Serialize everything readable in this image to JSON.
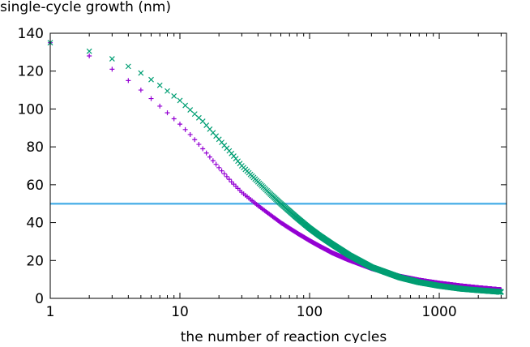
{
  "chart_data": {
    "type": "scatter",
    "title": "",
    "ylabel": "single-cycle growth (nm)",
    "xlabel": "the number of reaction cycles",
    "xscale": "log",
    "xlim": [
      1,
      3300
    ],
    "ylim": [
      0,
      140
    ],
    "x_ticks": [
      {
        "value": 1,
        "label": "1"
      },
      {
        "value": 10,
        "label": "10"
      },
      {
        "value": 100,
        "label": "100"
      },
      {
        "value": 1000,
        "label": "1000"
      }
    ],
    "y_ticks": [
      {
        "value": 0,
        "label": "0"
      },
      {
        "value": 20,
        "label": "20"
      },
      {
        "value": 40,
        "label": "40"
      },
      {
        "value": 60,
        "label": "60"
      },
      {
        "value": 80,
        "label": "80"
      },
      {
        "value": 100,
        "label": "100"
      },
      {
        "value": 120,
        "label": "120"
      },
      {
        "value": 140,
        "label": "140"
      }
    ],
    "grid": false,
    "legend": "none",
    "reference_line": {
      "y": 50,
      "color": "#56b4e9"
    },
    "series": [
      {
        "name": "series-purple",
        "marker": "plus",
        "color": "#9400d3",
        "x": [
          1,
          2,
          3,
          4,
          5,
          6,
          7,
          8,
          10,
          12,
          15,
          20,
          25,
          30,
          40,
          50,
          60,
          70,
          80,
          100,
          120,
          150,
          200,
          300,
          500,
          700,
          1000,
          1500,
          2000,
          3000
        ],
        "y": [
          135,
          128,
          121,
          115,
          110,
          105.5,
          101.5,
          98,
          92,
          86.5,
          79,
          69,
          61.5,
          56,
          49,
          44,
          40,
          37,
          34.5,
          30.5,
          27.5,
          24,
          20.3,
          15.8,
          11.6,
          9.6,
          8,
          6.5,
          5.6,
          4.5
        ]
      },
      {
        "name": "series-green",
        "marker": "cross",
        "color": "#009e73",
        "x": [
          1,
          2,
          3,
          4,
          5,
          6,
          7,
          8,
          10,
          12,
          15,
          20,
          25,
          30,
          40,
          50,
          60,
          70,
          80,
          100,
          120,
          150,
          200,
          300,
          500,
          700,
          1000,
          1500,
          2000,
          3000
        ],
        "y": [
          135,
          130.5,
          126.5,
          122.5,
          119,
          115.5,
          112.5,
          109.5,
          104.5,
          99.5,
          93.5,
          84,
          76.5,
          70,
          61.5,
          55,
          50,
          46,
          42.5,
          37,
          33,
          28.5,
          23,
          16.5,
          11,
          8.5,
          6.6,
          5,
          4.3,
          3.4
        ]
      }
    ]
  }
}
